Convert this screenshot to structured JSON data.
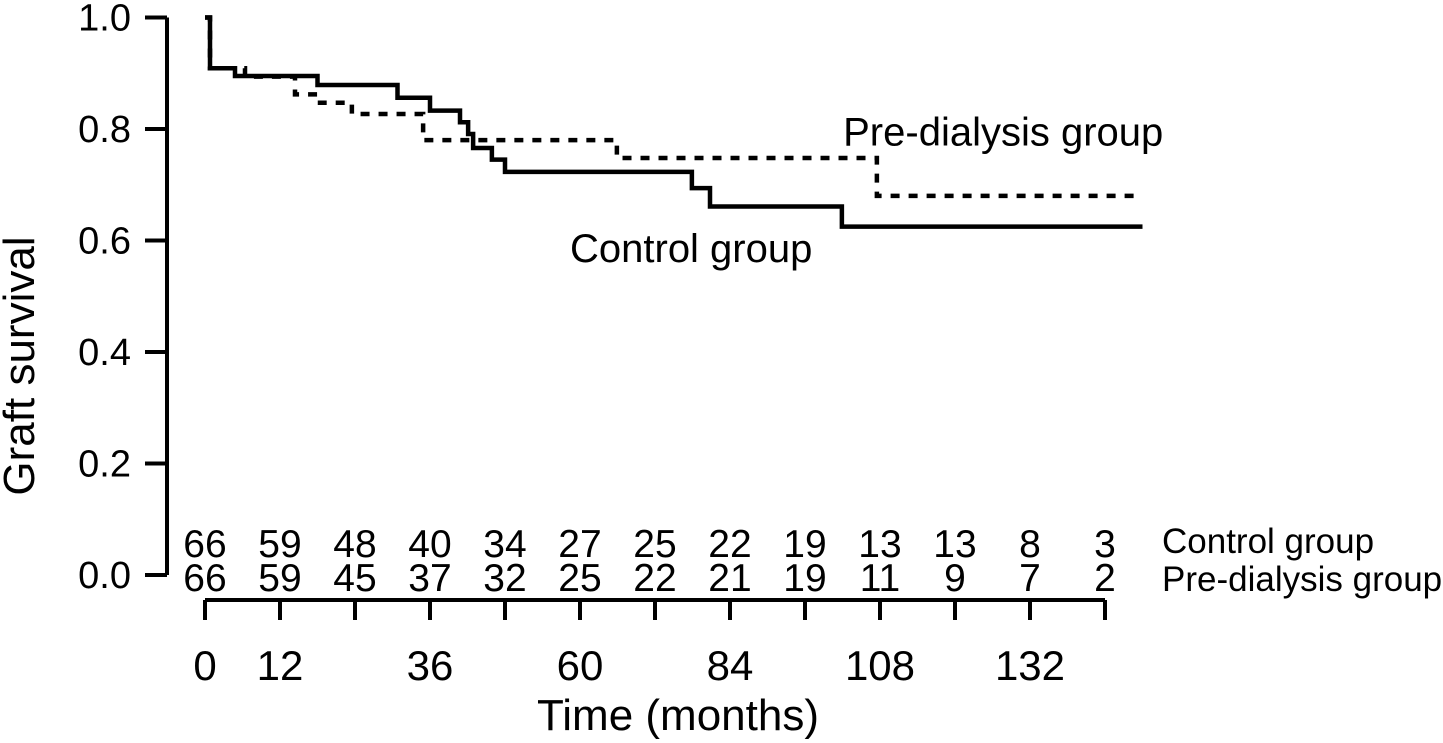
{
  "figure": {
    "background_color": "#ffffff",
    "ink_color": "#000000"
  },
  "chart_data": {
    "type": "line",
    "subtype": "kaplan-meier-step",
    "title": "",
    "xlabel": "Time (months)",
    "ylabel": "Graft survival",
    "xlim": [
      0,
      150
    ],
    "ylim": [
      0.0,
      1.0
    ],
    "grid": false,
    "legend_position": "inline-annotations",
    "x_ticks": [
      0,
      12,
      24,
      36,
      48,
      60,
      72,
      84,
      96,
      108,
      120,
      132,
      144
    ],
    "x_tick_labels": [
      "0",
      "12",
      "",
      "36",
      "",
      "60",
      "",
      "84",
      "",
      "108",
      "",
      "132",
      ""
    ],
    "y_ticks": [
      0.0,
      0.2,
      0.4,
      0.6,
      0.8,
      1.0
    ],
    "y_tick_labels": [
      "0.0",
      "0.2",
      "0.4",
      "0.6",
      "0.8",
      "1.0"
    ],
    "series": [
      {
        "name": "Control group",
        "line_style": "solid",
        "color": "#000000",
        "points": [
          [
            0,
            1.0
          ],
          [
            0.8,
            0.909
          ],
          [
            4.8,
            0.895
          ],
          [
            18,
            0.879
          ],
          [
            30.8,
            0.856
          ],
          [
            36,
            0.833
          ],
          [
            40.8,
            0.812
          ],
          [
            42.1,
            0.791
          ],
          [
            42.9,
            0.766
          ],
          [
            45.9,
            0.745
          ],
          [
            48,
            0.723
          ],
          [
            77.9,
            0.694
          ],
          [
            80.8,
            0.661
          ],
          [
            101.9,
            0.625
          ]
        ],
        "end_month": 150
      },
      {
        "name": "Pre-dialysis group",
        "line_style": "dashed",
        "color": "#000000",
        "points": [
          [
            0,
            1.0
          ],
          [
            0.8,
            0.909
          ],
          [
            6.4,
            0.894
          ],
          [
            14.4,
            0.862
          ],
          [
            18.4,
            0.847
          ],
          [
            23.5,
            0.827
          ],
          [
            34.9,
            0.78
          ],
          [
            65.9,
            0.748
          ],
          [
            107.5,
            0.68
          ]
        ],
        "end_month": 149.5
      }
    ],
    "annotations": [
      {
        "text": "Pre-dialysis group",
        "month": 102.1,
        "value": 0.77,
        "anchor": "start"
      },
      {
        "text": "Control group",
        "month": 58.4,
        "value": 0.561,
        "anchor": "start"
      }
    ],
    "risk_table": {
      "times": [
        0,
        12,
        24,
        36,
        48,
        60,
        72,
        84,
        96,
        108,
        120,
        132,
        144
      ],
      "rows": [
        {
          "label": "Control group",
          "counts": [
            66,
            59,
            48,
            40,
            34,
            27,
            25,
            22,
            19,
            13,
            13,
            8,
            3
          ]
        },
        {
          "label": "Pre-dialysis group",
          "counts": [
            66,
            59,
            45,
            37,
            32,
            25,
            22,
            21,
            19,
            11,
            9,
            7,
            2
          ]
        }
      ]
    }
  }
}
